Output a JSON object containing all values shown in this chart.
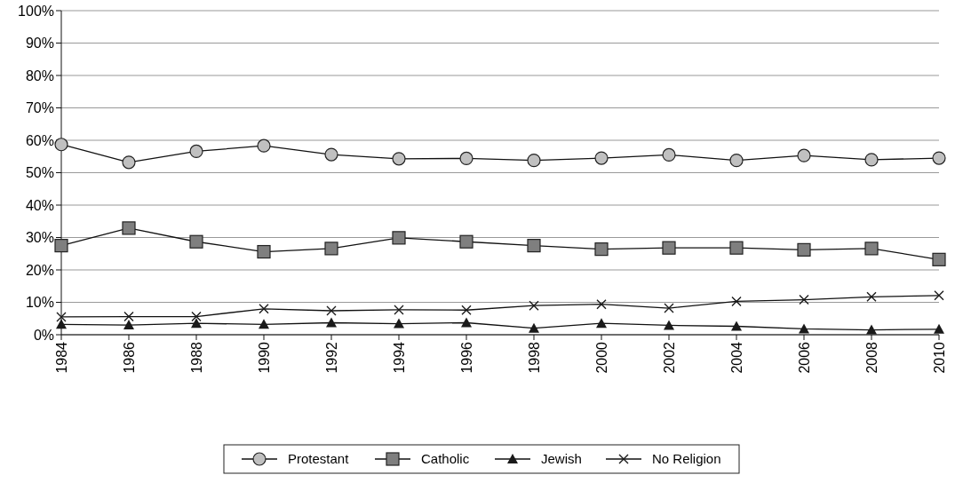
{
  "chart_data": {
    "type": "line",
    "x": [
      1984,
      1986,
      1988,
      1990,
      1992,
      1994,
      1996,
      1998,
      2000,
      2002,
      2004,
      2006,
      2008,
      2010
    ],
    "xlim": [
      1984,
      2010
    ],
    "xticks": [
      1984,
      1986,
      1988,
      1990,
      1992,
      1994,
      1996,
      1998,
      2000,
      2002,
      2004,
      2006,
      2008,
      2010
    ],
    "ylim": [
      0,
      100
    ],
    "yticks": [
      {
        "value": 0,
        "label": "0%"
      },
      {
        "value": 10,
        "label": "10%"
      },
      {
        "value": 20,
        "label": "20%"
      },
      {
        "value": 30,
        "label": "30%"
      },
      {
        "value": 40,
        "label": "40%"
      },
      {
        "value": 50,
        "label": "50%"
      },
      {
        "value": 60,
        "label": "60%"
      },
      {
        "value": 70,
        "label": "70%"
      },
      {
        "value": 80,
        "label": "80%"
      },
      {
        "value": 90,
        "label": "90%"
      },
      {
        "value": 100,
        "label": "100%"
      }
    ],
    "grid": "y",
    "legend": "bottom",
    "series": [
      {
        "name": "Protestant",
        "color": "#c0c0c0",
        "marker": "circle",
        "values": [
          58.7,
          53.2,
          56.6,
          58.3,
          55.6,
          54.3,
          54.4,
          53.8,
          54.5,
          55.5,
          53.8,
          55.3,
          54.0,
          54.5
        ]
      },
      {
        "name": "Catholic",
        "color": "#7f7f7f",
        "marker": "square",
        "values": [
          27.5,
          32.9,
          28.7,
          25.6,
          26.6,
          29.9,
          28.7,
          27.5,
          26.4,
          26.8,
          26.8,
          26.2,
          26.6,
          23.2
        ]
      },
      {
        "name": "Jewish",
        "color": "#1a1a1a",
        "marker": "triangle",
        "values": [
          3.2,
          3.0,
          3.5,
          3.2,
          3.7,
          3.4,
          3.7,
          2.0,
          3.5,
          2.9,
          2.6,
          1.8,
          1.5,
          1.7
        ]
      },
      {
        "name": "No Religion",
        "color": "#1a1a1a",
        "marker": "cross",
        "values": [
          5.5,
          5.6,
          5.6,
          8.0,
          7.4,
          7.7,
          7.6,
          9.0,
          9.4,
          8.2,
          10.3,
          10.8,
          11.7,
          12.1
        ]
      }
    ]
  }
}
